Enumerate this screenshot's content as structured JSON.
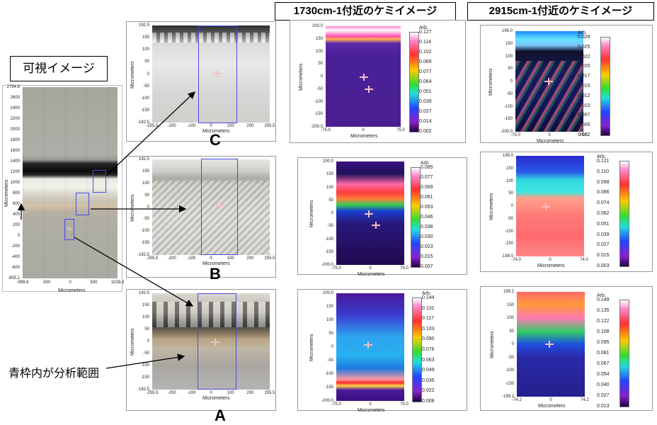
{
  "labels": {
    "visible_image": "可視イメージ",
    "chem_1730": "1730cm-1付近のケミイメージ",
    "chem_2915": "2915cm-1付近のケミイメージ",
    "blue_frame_note": "青枠内が分析範囲",
    "letter_c": "C",
    "letter_b": "B",
    "letter_a": "A",
    "arb": "Arb."
  },
  "overview": {
    "y_ticks": [
      "2784.8",
      "2600",
      "2400",
      "2200",
      "2000",
      "1800",
      "1600",
      "1400",
      "1200",
      "1000",
      "800",
      "600",
      "400",
      "200",
      "0",
      "-200",
      "-400",
      "-600",
      "-905.2"
    ],
    "x_ticks": [
      "-999.8",
      "-500",
      "0",
      "500",
      "1028.8"
    ],
    "x_title": "Micrometers",
    "y_title": "Micrometers"
  },
  "visible_panels": {
    "y_ticks": [
      "192.5",
      "150",
      "100",
      "50",
      "0",
      "-50",
      "-100",
      "-150",
      "-192.5"
    ],
    "x_ticks": [
      "-255.5",
      "-200",
      "-100",
      "0",
      "100",
      "200",
      "255.5"
    ],
    "x_title": "Micrometers",
    "y_title": "Micrometers"
  },
  "chem_1730": {
    "c": {
      "y_ticks": [
        "200.0",
        "150",
        "100",
        "50",
        "0",
        "-50",
        "-100",
        "-150",
        "-200.0"
      ],
      "x_ticks": [
        "-75.0",
        "0",
        "75.0"
      ],
      "scale": [
        "0.127",
        "0.114",
        "0.102",
        "0.089",
        "0.077",
        "0.064",
        "0.051",
        "0.039",
        "0.027",
        "0.014",
        "0.002"
      ]
    },
    "b": {
      "y_ticks": [
        "200.0",
        "150",
        "100",
        "50",
        "0",
        "-50",
        "-100",
        "-150",
        "-200.0"
      ],
      "x_ticks": [
        "-75.0",
        "0",
        "74.0"
      ],
      "scale": [
        "0.085",
        "0.077",
        "0.069",
        "0.061",
        "0.053",
        "0.046",
        "0.038",
        "0.030",
        "0.023",
        "0.015",
        "0.007"
      ]
    },
    "a": {
      "y_ticks": [
        "200.0",
        "150",
        "100",
        "50",
        "0",
        "-50",
        "-100",
        "-150",
        "-200.0"
      ],
      "x_ticks": [
        "-75.0",
        "0",
        "75.0"
      ],
      "scale": [
        "0.144",
        "0.131",
        "0.117",
        "0.103",
        "0.090",
        "0.076",
        "0.063",
        "0.049",
        "0.035",
        "0.022",
        "0.008"
      ]
    },
    "x_title": "Micrometers",
    "y_title": "Micrometers"
  },
  "chem_2915": {
    "c": {
      "y_ticks": [
        "199.0",
        "150",
        "100",
        "50",
        "0",
        "-50",
        "-100",
        "-150",
        "-200.0"
      ],
      "x_ticks": [
        "-75.0",
        "0",
        "74.0"
      ],
      "scale": [
        "0.028",
        "0.025",
        "0.022",
        "0.020",
        "0.017",
        "0.015",
        "0.012",
        "0.010",
        "0.007",
        "0.005",
        "0.002"
      ]
    },
    "b": {
      "y_ticks": [
        "199.0",
        "150",
        "100",
        "50",
        "0",
        "-50",
        "-100",
        "-150",
        "-199.0"
      ],
      "x_ticks": [
        "-74.0",
        "0",
        "74.0"
      ],
      "scale": [
        "0.121",
        "0.110",
        "0.098",
        "0.086",
        "0.074",
        "0.062",
        "0.051",
        "0.039",
        "0.027",
        "0.015",
        "0.003"
      ]
    },
    "a": {
      "y_ticks": [
        "199.2",
        "150",
        "100",
        "50",
        "0",
        "-50",
        "-100",
        "-150",
        "-199.2"
      ],
      "x_ticks": [
        "-74.2",
        "0",
        "74.2"
      ],
      "scale": [
        "0.149",
        "0.135",
        "0.122",
        "0.108",
        "0.095",
        "0.081",
        "0.067",
        "0.054",
        "0.040",
        "0.027",
        "0.013"
      ]
    },
    "x_title": "Micrometers",
    "y_title": "Micrometers"
  }
}
